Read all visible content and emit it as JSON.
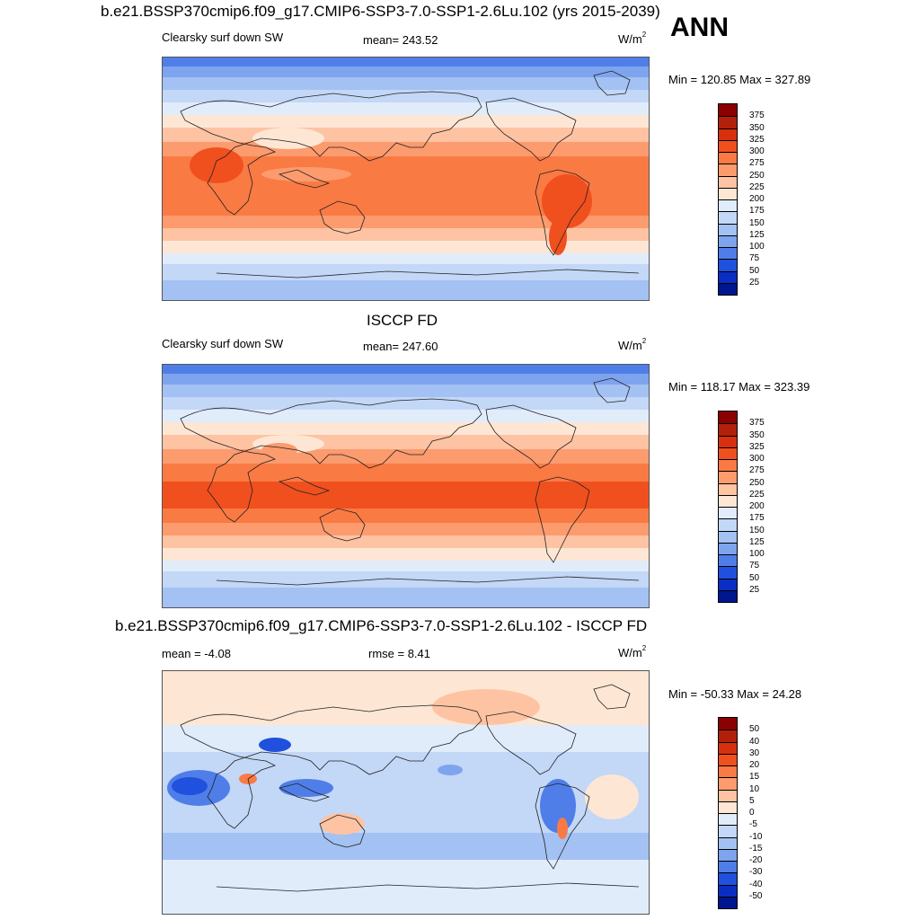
{
  "season_label": "ANN",
  "panels": [
    {
      "title": "b.e21.BSSP370cmip6.f09_g17.CMIP6-SSP3-7.0-SSP1-2.6Lu.102 (yrs 2015-2039)",
      "left_label": "Clearsky surf down SW",
      "center_label": "mean= 243.52",
      "units_base": "W/m",
      "units_exp": "2",
      "minmax": "Min = 120.85 Max = 327.89",
      "colorbar_levels": [
        "375",
        "350",
        "325",
        "300",
        "275",
        "250",
        "225",
        "200",
        "175",
        "150",
        "125",
        "100",
        "75",
        "50",
        "25"
      ],
      "colorbar_colors": [
        "#8b0000",
        "#b3200a",
        "#d7300f",
        "#f0501e",
        "#fa7a44",
        "#fc9b6e",
        "#fdc3a3",
        "#fee6d4",
        "#e1ecfb",
        "#c3d7f7",
        "#a3c1f3",
        "#7ea4ee",
        "#4f7ee8",
        "#2050de",
        "#0a2ec4",
        "#00168f"
      ]
    },
    {
      "title": "ISCCP FD",
      "left_label": "Clearsky surf down SW",
      "center_label": "mean= 247.60",
      "units_base": "W/m",
      "units_exp": "2",
      "minmax": "Min = 118.17 Max = 323.39",
      "colorbar_levels": [
        "375",
        "350",
        "325",
        "300",
        "275",
        "250",
        "225",
        "200",
        "175",
        "150",
        "125",
        "100",
        "75",
        "50",
        "25"
      ],
      "colorbar_colors": [
        "#8b0000",
        "#b3200a",
        "#d7300f",
        "#f0501e",
        "#fa7a44",
        "#fc9b6e",
        "#fdc3a3",
        "#fee6d4",
        "#e1ecfb",
        "#c3d7f7",
        "#a3c1f3",
        "#7ea4ee",
        "#4f7ee8",
        "#2050de",
        "#0a2ec4",
        "#00168f"
      ]
    },
    {
      "title": "b.e21.BSSP370cmip6.f09_g17.CMIP6-SSP3-7.0-SSP1-2.6Lu.102 - ISCCP FD",
      "left_label": "mean =  -4.08",
      "center_label": "rmse =   8.41",
      "units_base": "W/m",
      "units_exp": "2",
      "minmax": "Min = -50.33 Max =  24.28",
      "colorbar_levels": [
        "50",
        "40",
        "30",
        "20",
        "15",
        "10",
        "5",
        "0",
        "-5",
        "-10",
        "-15",
        "-20",
        "-30",
        "-40",
        "-50"
      ],
      "colorbar_colors": [
        "#8b0000",
        "#b3200a",
        "#d7300f",
        "#f0501e",
        "#fa7a44",
        "#fc9b6e",
        "#fdc3a3",
        "#fee6d4",
        "#e1ecfb",
        "#c3d7f7",
        "#a3c1f3",
        "#7ea4ee",
        "#4f7ee8",
        "#2050de",
        "#0a2ec4",
        "#00168f"
      ]
    }
  ]
}
